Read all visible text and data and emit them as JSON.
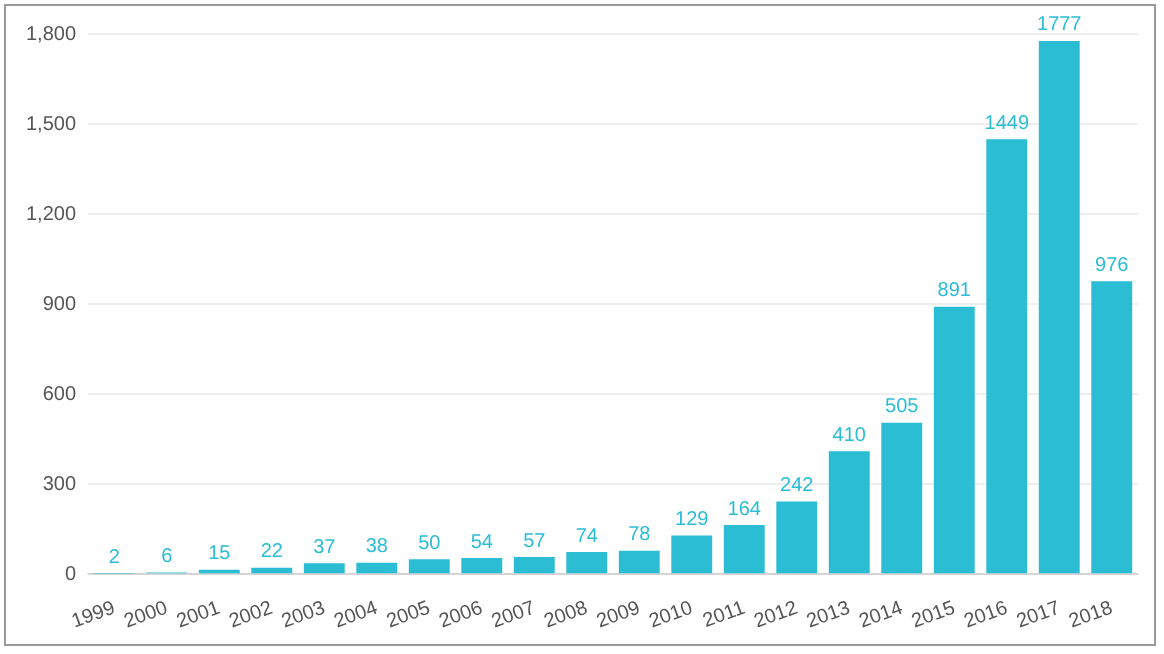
{
  "chart_data": {
    "type": "bar",
    "categories": [
      "1999",
      "2000",
      "2001",
      "2002",
      "2003",
      "2004",
      "2005",
      "2006",
      "2007",
      "2008",
      "2009",
      "2010",
      "2011",
      "2012",
      "2013",
      "2014",
      "2015",
      "2016",
      "2017",
      "2018"
    ],
    "values": [
      2,
      6,
      15,
      22,
      37,
      38,
      50,
      54,
      57,
      74,
      78,
      129,
      164,
      242,
      410,
      505,
      891,
      1449,
      1777,
      976
    ],
    "color": "#2bbdd3",
    "ylim": [
      0,
      1800
    ],
    "yticks": [
      0,
      300,
      600,
      900,
      {
        "value": 1200,
        "label": "1,200"
      },
      {
        "value": 1500,
        "label": "1,500"
      },
      {
        "value": 1800,
        "label": "1,800"
      }
    ],
    "grid": "y",
    "data_labels": true
  }
}
